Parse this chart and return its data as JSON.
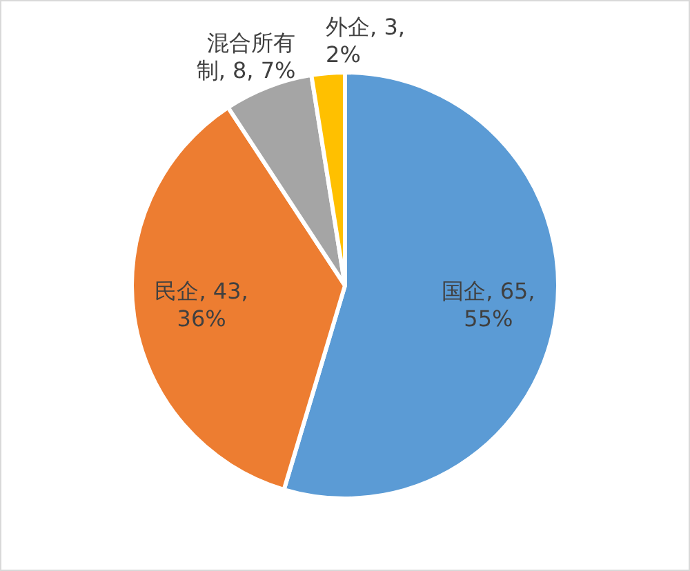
{
  "chart_data": {
    "type": "pie",
    "categories": [
      "国企",
      "民企",
      "混合所有制",
      "外企"
    ],
    "values": [
      65,
      43,
      8,
      3
    ],
    "colors": [
      "#5b9bd5",
      "#ed7d31",
      "#a5a5a5",
      "#ffc000"
    ],
    "value_labels": [
      "65, 55%",
      "43, 36%",
      "8, 7%",
      "3, 2%"
    ],
    "legend": false
  }
}
